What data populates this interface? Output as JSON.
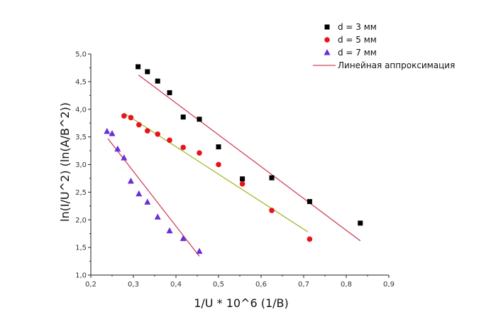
{
  "chart_data": {
    "type": "scatter",
    "title": "",
    "xlabel": "1/U * 10^6 (1/B)",
    "ylabel": "ln(I/U^2) (ln(A/B^2))",
    "xlim": [
      0.2,
      0.9
    ],
    "ylim": [
      1.0,
      5.0
    ],
    "xticks": [
      0.2,
      0.3,
      0.4,
      0.5,
      0.6,
      0.7,
      0.8,
      0.9
    ],
    "yticks": [
      1.0,
      1.5,
      2.0,
      2.5,
      3.0,
      3.5,
      4.0,
      4.5,
      5.0
    ],
    "xtick_labels": [
      "0,2",
      "0,3",
      "0,4",
      "0,5",
      "0,6",
      "0,7",
      "0,8",
      "0,9"
    ],
    "ytick_labels": [
      "1,0",
      "1,5",
      "2,0",
      "2,5",
      "3,0",
      "3,5",
      "4,0",
      "4,5",
      "5,0"
    ],
    "grid": false,
    "legend_position": "top-right",
    "series": [
      {
        "name": "d = 3 мм",
        "marker": "square",
        "color": "#000000",
        "x": [
          0.311,
          0.333,
          0.357,
          0.385,
          0.417,
          0.455,
          0.5,
          0.556,
          0.625,
          0.714,
          0.833
        ],
        "y": [
          4.77,
          4.68,
          4.51,
          4.3,
          3.86,
          3.82,
          3.32,
          2.74,
          2.76,
          2.33,
          1.94
        ],
        "fit": {
          "x": [
            0.312,
            0.833
          ],
          "y": [
            4.62,
            1.62
          ],
          "color": "#d0455a"
        }
      },
      {
        "name": "d = 5 мм",
        "marker": "circle",
        "color": "#e8141c",
        "x": [
          0.278,
          0.294,
          0.313,
          0.333,
          0.357,
          0.385,
          0.417,
          0.455,
          0.5,
          0.556,
          0.625,
          0.714
        ],
        "y": [
          3.88,
          3.85,
          3.72,
          3.61,
          3.55,
          3.44,
          3.31,
          3.21,
          3.0,
          2.65,
          2.17,
          1.65
        ],
        "fit": {
          "x": [
            0.278,
            0.71
          ],
          "y": [
            3.93,
            1.78
          ],
          "color": "#a8b830"
        }
      },
      {
        "name": "d = 7 мм",
        "marker": "triangle",
        "color": "#6a2ed8",
        "x": [
          0.238,
          0.25,
          0.263,
          0.278,
          0.294,
          0.313,
          0.333,
          0.357,
          0.385,
          0.417,
          0.455
        ],
        "y": [
          3.6,
          3.56,
          3.28,
          3.12,
          2.7,
          2.47,
          2.32,
          2.05,
          1.8,
          1.66,
          1.43
        ],
        "fit": {
          "x": [
            0.24,
            0.455
          ],
          "y": [
            3.47,
            1.34
          ],
          "color": "#d0455a"
        }
      }
    ],
    "fit_legend_label": "Линейная аппроксимация"
  }
}
